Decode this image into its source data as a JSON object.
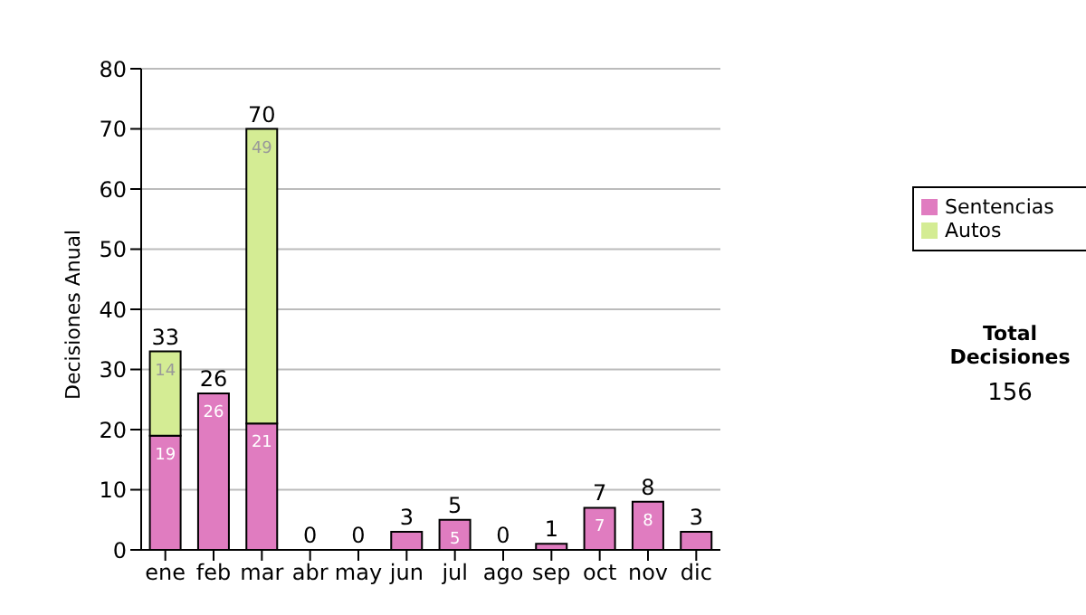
{
  "chart_data": {
    "type": "bar",
    "stacked": true,
    "ylabel": "Decisiones Anual",
    "categories": [
      "ene",
      "feb",
      "mar",
      "abr",
      "may",
      "jun",
      "jul",
      "ago",
      "sep",
      "oct",
      "nov",
      "dic"
    ],
    "series": [
      {
        "name": "Sentencias",
        "color": "#e07cc0",
        "values": [
          19,
          26,
          21,
          0,
          0,
          3,
          5,
          0,
          1,
          7,
          8,
          3
        ],
        "value_labels": [
          "19",
          "26",
          "21",
          null,
          null,
          null,
          "5",
          null,
          null,
          "7",
          "8",
          null
        ]
      },
      {
        "name": "Autos",
        "color": "#d4ec94",
        "values": [
          14,
          0,
          49,
          0,
          0,
          0,
          0,
          0,
          0,
          0,
          0,
          0
        ],
        "value_labels": [
          "14",
          null,
          "49",
          null,
          null,
          null,
          null,
          null,
          null,
          null,
          null,
          null
        ]
      }
    ],
    "totals": [
      "33",
      "26",
      "70",
      "0",
      "0",
      "3",
      "5",
      "0",
      "1",
      "7",
      "8",
      "3"
    ],
    "ylim": [
      0,
      80
    ],
    "yticks": [
      0,
      10,
      20,
      30,
      40,
      50,
      60,
      70,
      80
    ],
    "grid": "y",
    "legend": "right",
    "annotations": [
      "Total Decisiones",
      "156"
    ]
  }
}
